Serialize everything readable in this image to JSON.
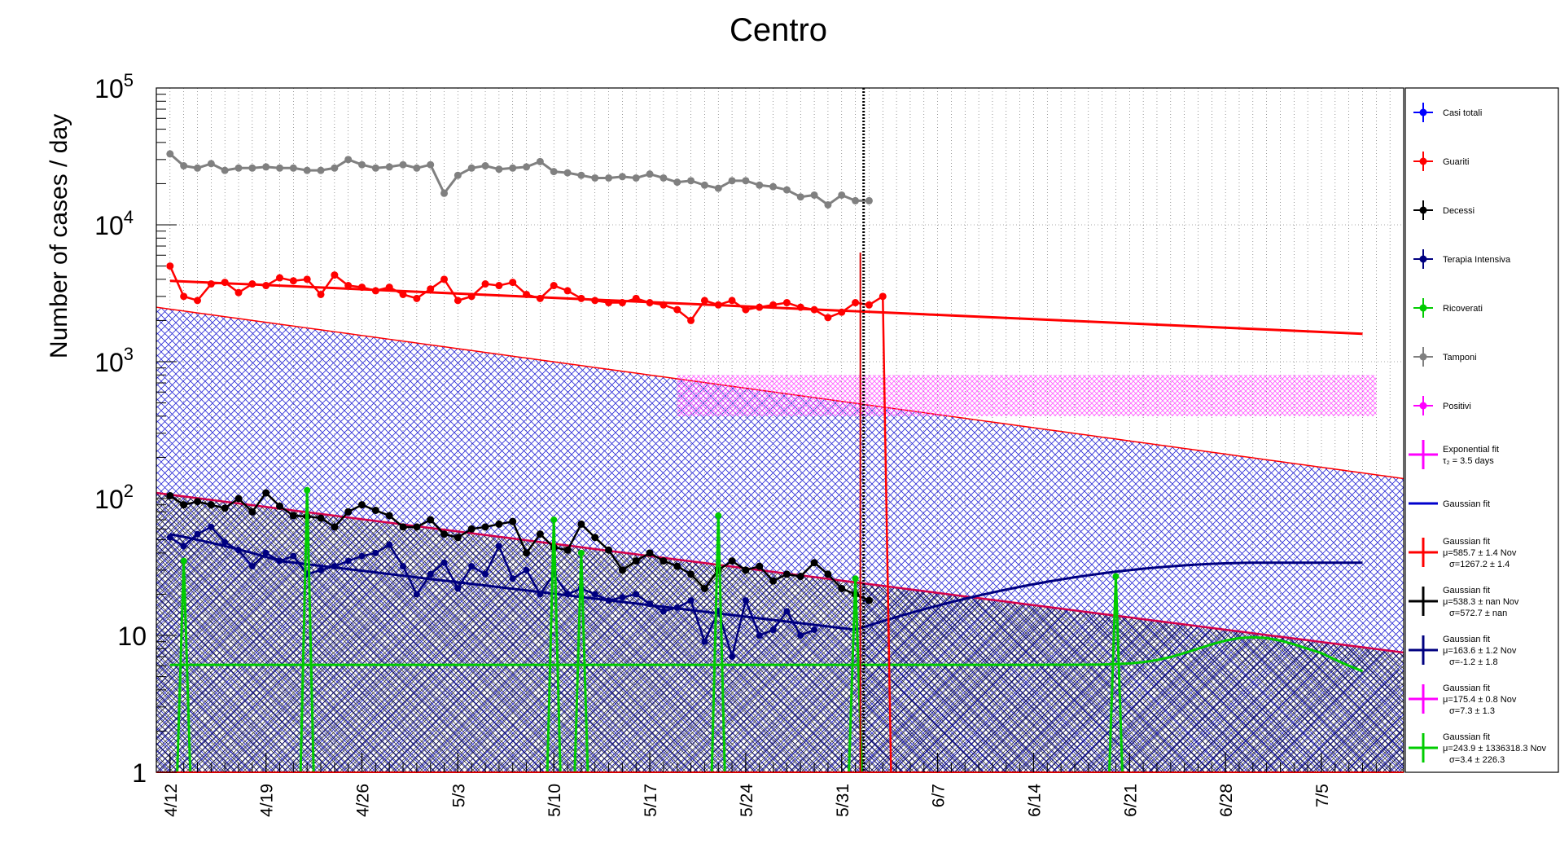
{
  "chart_data": {
    "type": "line",
    "title": "Centro",
    "ylabel": "Number of cases / day",
    "xlabel": "",
    "yscale": "log",
    "ylim": [
      1,
      100000
    ],
    "x_tick_labels": [
      "4/12",
      "4/19",
      "4/26",
      "5/3",
      "5/10",
      "5/17",
      "5/24",
      "5/31",
      "6/7",
      "6/14",
      "6/21",
      "6/28",
      "7/5"
    ],
    "y_tick_labels": [
      {
        "value": 1,
        "label": "1"
      },
      {
        "value": 10,
        "label": "10"
      },
      {
        "value": 100,
        "label": "10",
        "exp": "2"
      },
      {
        "value": 1000,
        "label": "10",
        "exp": "3"
      },
      {
        "value": 10000,
        "label": "10",
        "exp": "4"
      },
      {
        "value": 100000,
        "label": "10",
        "exp": "5"
      }
    ],
    "grid": true,
    "legend_position": "right",
    "x_axis_note": "x values are day offsets where 0 = 4/12",
    "x_range": [
      -1,
      90
    ],
    "data_end_day": 50,
    "vertical_line_day": 50.6,
    "series": [
      {
        "name": "Casi totali",
        "color": "#0000ff",
        "values": []
      },
      {
        "name": "Guariti",
        "color": "#ff0000",
        "values": [
          5000,
          3000,
          2800,
          3700,
          3800,
          3200,
          3700,
          3600,
          4100,
          3900,
          4000,
          3100,
          4300,
          3600,
          3500,
          3300,
          3500,
          3100,
          2900,
          3400,
          4000,
          2800,
          3000,
          3700,
          3600,
          3800,
          3100,
          2900,
          3600,
          3300,
          2900,
          2800,
          2700,
          2700,
          2900,
          2700,
          2600,
          2400,
          2000,
          2800,
          2600,
          2800,
          2400,
          2500,
          2600,
          2700,
          2500,
          2400,
          2100,
          2300,
          2700,
          2600,
          3000
        ]
      },
      {
        "name": "Decessi",
        "color": "#000000",
        "values": [
          105,
          90,
          95,
          90,
          85,
          100,
          80,
          110,
          88,
          75,
          74,
          72,
          62,
          80,
          90,
          82,
          75,
          62,
          62,
          70,
          55,
          52,
          60,
          62,
          65,
          68,
          40,
          55,
          44,
          42,
          65,
          52,
          42,
          30,
          35,
          40,
          35,
          32,
          28,
          22,
          30,
          35,
          30,
          32,
          25,
          28,
          27,
          34,
          28,
          22,
          20,
          18
        ]
      },
      {
        "name": "Terapia Intensiva",
        "color": "#000080",
        "values": [
          52,
          45,
          55,
          62,
          48,
          42,
          32,
          40,
          35,
          38,
          28,
          30,
          32,
          35,
          38,
          40,
          46,
          32,
          20,
          28,
          34,
          22,
          32,
          28,
          45,
          26,
          30,
          20,
          28,
          20,
          22,
          20,
          18,
          19,
          20,
          17,
          15,
          16,
          18,
          9,
          15,
          7,
          18,
          10,
          11,
          15,
          10,
          11
        ]
      },
      {
        "name": "Ricoverati",
        "color": "#00cc00",
        "spikes": [
          {
            "day": 1,
            "value": 35
          },
          {
            "day": 10,
            "value": 115
          },
          {
            "day": 28,
            "value": 70
          },
          {
            "day": 30,
            "value": 40
          },
          {
            "day": 40,
            "value": 75
          },
          {
            "day": 50,
            "value": 26
          },
          {
            "day": 69,
            "value": 27
          }
        ],
        "values": []
      },
      {
        "name": "Tamponi",
        "color": "#808080",
        "values": [
          33000,
          27000,
          26000,
          28000,
          25000,
          26000,
          26000,
          26500,
          26000,
          26000,
          25000,
          25000,
          26000,
          30000,
          27500,
          26000,
          26500,
          27500,
          26000,
          27500,
          17000,
          23000,
          26000,
          27000,
          25500,
          26000,
          26500,
          29000,
          24500,
          24000,
          23000,
          22000,
          22000,
          22500,
          22000,
          23500,
          22000,
          20500,
          21000,
          19500,
          18500,
          21000,
          21000,
          19500,
          19000,
          18000,
          16000,
          16500,
          14000,
          16500,
          15000,
          15000
        ]
      },
      {
        "name": "Positivi",
        "color": "#ff00ff",
        "band_low": 400,
        "band_high": 800,
        "values": []
      },
      {
        "name": "Exponential fit",
        "subtext": "τ₂ = 3.5 days",
        "color": "#ff00ff",
        "values": []
      },
      {
        "name": "Gaussian fit",
        "color": "#0000cc",
        "values": []
      },
      {
        "name": "Gaussian fit",
        "params": [
          "μ=585.7 ± 1.4 Nov",
          "σ=1267.2 ± 1.4"
        ],
        "color": "#ff0000",
        "fit_start": 3900,
        "fit_end": 1600
      },
      {
        "name": "Gaussian fit",
        "params": [
          "μ=538.3 ± nan Nov",
          "σ=572.7 ± nan"
        ],
        "color": "#000000"
      },
      {
        "name": "Gaussian fit",
        "params": [
          "μ=163.6 ± 1.2 Nov",
          "σ=-1.2 ± 1.8"
        ],
        "color": "#000080"
      },
      {
        "name": "Gaussian fit",
        "params": [
          "μ=175.4 ± 0.8 Nov",
          "σ=7.3 ± 1.3"
        ],
        "color": "#ff00ff"
      },
      {
        "name": "Gaussian fit",
        "params": [
          "μ=243.9 ± 1336318.3 Nov",
          "σ=3.4 ± 226.3"
        ],
        "color": "#00cc00"
      }
    ]
  },
  "legend": {
    "items": [
      {
        "label": "Casi totali",
        "color": "#0000ff",
        "marker": true
      },
      {
        "label": "Guariti",
        "color": "#ff0000",
        "marker": true
      },
      {
        "label": "Decessi",
        "color": "#000000",
        "marker": true
      },
      {
        "label": "Terapia Intensiva",
        "color": "#000080",
        "marker": true
      },
      {
        "label": "Ricoverati",
        "color": "#00cc00",
        "marker": true
      },
      {
        "label": "Tamponi",
        "color": "#808080",
        "marker": true
      },
      {
        "label": "Positivi",
        "color": "#ff00ff",
        "marker": true
      },
      {
        "label": "Exponential fit",
        "sub": "τ₂ = 3.5 days",
        "color": "#ff00ff",
        "marker": false,
        "cross": true
      },
      {
        "label": "Gaussian fit",
        "color": "#0000cc",
        "marker": false,
        "cross": false
      },
      {
        "label": "Gaussian fit",
        "sub": "μ=585.7 ± 1.4 Nov",
        "sub2": "σ=1267.2 ± 1.4",
        "color": "#ff0000",
        "marker": false,
        "cross": true
      },
      {
        "label": "Gaussian fit",
        "sub": "μ=538.3 ± nan Nov",
        "sub2": "σ=572.7 ± nan",
        "color": "#000000",
        "marker": false,
        "cross": true
      },
      {
        "label": "Gaussian fit",
        "sub": "μ=163.6 ± 1.2 Nov",
        "sub2": "σ=-1.2 ± 1.8",
        "color": "#000080",
        "marker": false,
        "cross": true
      },
      {
        "label": "Gaussian fit",
        "sub": "μ=175.4 ± 0.8 Nov",
        "sub2": "σ=7.3 ± 1.3",
        "color": "#ff00ff",
        "marker": false,
        "cross": true
      },
      {
        "label": "Gaussian fit",
        "sub": "μ=243.9 ± 1336318.3 Nov",
        "sub2": "σ=3.4 ± 226.3",
        "color": "#00cc00",
        "marker": false,
        "cross": true
      }
    ]
  }
}
